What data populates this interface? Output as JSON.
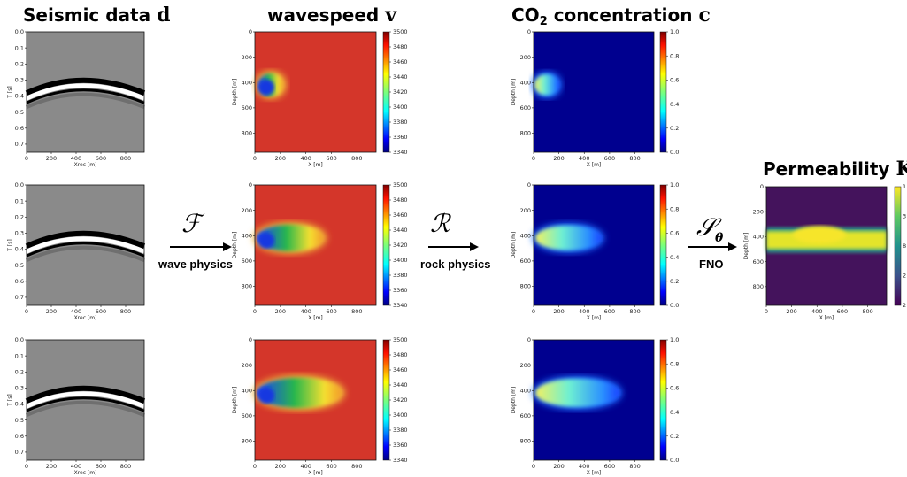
{
  "titles": {
    "seismic": "Seismic data",
    "seismic_sym": "d",
    "wavespeed": "wavespeed",
    "wavespeed_sym": "v",
    "co2_pre": "CO",
    "co2_sub": "2",
    "co2_post": " concentration",
    "co2_sym": "c",
    "perm": "Permeability",
    "perm_sym": "K"
  },
  "operators": {
    "wave": {
      "symbol": "ℱ",
      "label": "wave physics"
    },
    "rock": {
      "symbol": "ℛ",
      "label": "rock physics"
    },
    "fno": {
      "symbol": "𝒮",
      "subscript": "θ",
      "label": "FNO"
    }
  },
  "axes": {
    "seismic": {
      "xlabel": "Xrec [m]",
      "ylabel": "T [s]",
      "xticks": [
        "0",
        "200",
        "400",
        "600",
        "800"
      ],
      "yticks": [
        "0.0",
        "0.1",
        "0.2",
        "0.3",
        "0.4",
        "0.5",
        "0.6",
        "0.7"
      ]
    },
    "map": {
      "xlabel": "X [m]",
      "ylabel": "Depth [m]",
      "xticks": [
        "0",
        "200",
        "400",
        "600",
        "800"
      ],
      "yticks": [
        "0",
        "200",
        "400",
        "600",
        "800"
      ]
    }
  },
  "colorbars": {
    "wavespeed": [
      "3500",
      "3480",
      "3460",
      "3440",
      "3420",
      "3400",
      "3380",
      "3360",
      "3340"
    ],
    "co2": [
      "1.0",
      "0.8",
      "0.6",
      "0.4",
      "0.2",
      "0.0"
    ],
    "perm": [
      "1",
      "3",
      "8",
      "2",
      "2"
    ]
  },
  "colors": {
    "seismic_bg": "#8a8a8a",
    "wavespeed_bg": "#d4362a",
    "co2_bg": "#00008f",
    "perm_bg": "#44135c"
  }
}
